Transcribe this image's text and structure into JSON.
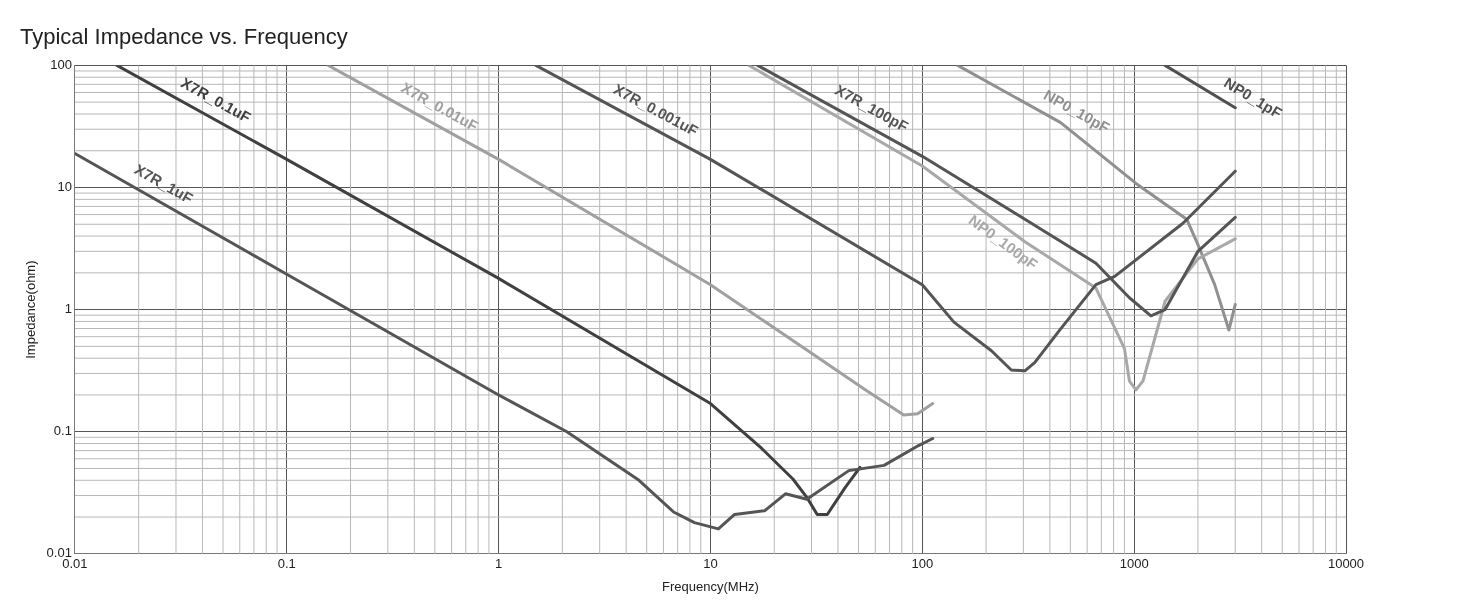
{
  "chart_data": {
    "type": "line",
    "title": "Typical Impedance vs. Frequency",
    "xlabel": "Frequency(MHz)",
    "ylabel": "Impedance(ohm)",
    "log": "xy",
    "grid": true,
    "legend": false,
    "marker": "none",
    "line_style": "solid",
    "xlim": [
      0.01,
      10000
    ],
    "ylim": [
      0.01,
      100
    ],
    "xticks": [
      0.01,
      0.1,
      1,
      10,
      100,
      1000,
      10000
    ],
    "yticks": [
      0.01,
      0.1,
      1,
      10,
      100
    ],
    "series": [
      {
        "name": "X7R_1uF",
        "color": "#555555",
        "x": [
          0.01,
          0.1,
          1,
          2.1,
          4.6,
          6.7,
          8.4,
          10.9,
          13,
          18,
          22.6,
          28.5,
          45,
          66,
          96,
          112
        ],
        "values": [
          19,
          1.95,
          0.2,
          0.1,
          0.04,
          0.022,
          0.018,
          0.016,
          0.021,
          0.0225,
          0.031,
          0.028,
          0.048,
          0.053,
          0.077,
          0.088
        ]
      },
      {
        "name": "X7R_0.1uF",
        "color": "#404040",
        "x": [
          0.0158,
          0.1,
          1,
          10,
          17.3,
          24.5,
          28.5,
          31.9,
          35.6,
          43.3,
          50.8
        ],
        "values": [
          100,
          17,
          1.8,
          0.17,
          0.074,
          0.041,
          0.029,
          0.021,
          0.021,
          0.035,
          0.051
        ]
      },
      {
        "name": "X7R_0.01uF",
        "color": "#a0a0a0",
        "x": [
          0.157,
          1,
          10,
          30.5,
          54,
          81.8,
          95,
          112
        ],
        "values": [
          100,
          17,
          1.6,
          0.43,
          0.22,
          0.137,
          0.14,
          0.17
        ]
      },
      {
        "name": "X7R_0.001uF",
        "color": "#555555",
        "x": [
          1.5,
          10,
          100,
          141,
          212,
          263,
          305,
          340,
          445,
          660,
          810,
          1700,
          3000
        ],
        "values": [
          100,
          17,
          1.6,
          0.79,
          0.46,
          0.32,
          0.315,
          0.37,
          0.68,
          1.6,
          1.87,
          5.1,
          13.6
        ]
      },
      {
        "name": "X7R_100pF",
        "color": "#555555",
        "x": [
          16.7,
          100,
          305,
          660,
          950,
          1200,
          1400,
          2000,
          3000
        ],
        "values": [
          100,
          18,
          5.5,
          2.4,
          1.25,
          0.89,
          1,
          3,
          5.7
        ]
      },
      {
        "name": "NP0_100pF",
        "color": "#a8a8a8",
        "x": [
          15.2,
          100,
          305,
          660,
          900,
          950,
          1020,
          1100,
          1400,
          2000,
          3000
        ],
        "values": [
          100,
          15,
          3.6,
          1.5,
          0.48,
          0.26,
          0.22,
          0.26,
          1.17,
          2.6,
          3.8
        ]
      },
      {
        "name": "NP0_10pF",
        "color": "#909090",
        "x": [
          147,
          450,
          1020,
          1770,
          2000,
          2400,
          2800,
          3000
        ],
        "values": [
          100,
          34,
          10.8,
          5.5,
          3.4,
          1.6,
          0.68,
          1.1
        ]
      },
      {
        "name": "NP0_1pF",
        "color": "#505050",
        "x": [
          1400,
          3000
        ],
        "values": [
          100,
          45
        ]
      }
    ]
  }
}
